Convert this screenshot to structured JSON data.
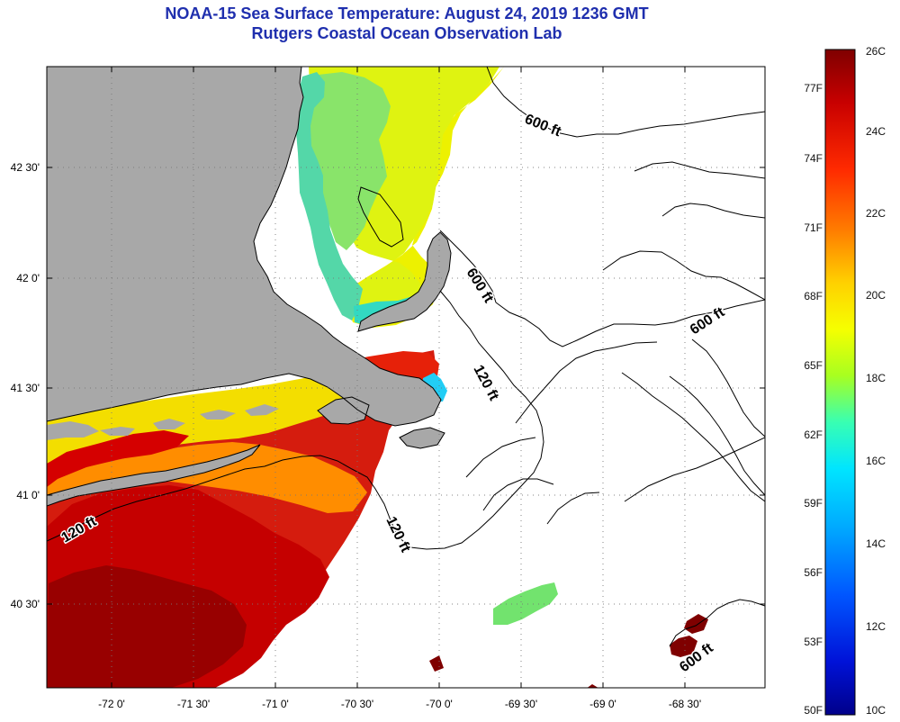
{
  "title": {
    "line1": "NOAA-15 Sea Surface Temperature:  August 24, 2019 1236 GMT",
    "line2": "Rutgers Coastal Ocean Observation Lab"
  },
  "map": {
    "longitude_ticks": [
      "-72 0'",
      "-71 30'",
      "-71 0'",
      "-70 30'",
      "-70 0'",
      "-69 30'",
      "-69 0'",
      "-68 30'"
    ],
    "latitude_ticks": [
      "42 30'",
      "42 0'",
      "41 30'",
      "41 0'",
      "40 30'"
    ],
    "contour_labels": [
      "600 ft",
      "600 ft",
      "600 ft",
      "600 ft",
      "120 ft",
      "120 ft",
      "120 ft"
    ],
    "colors": {
      "land": "#a8a8a8",
      "ocean_no_data": "#ffffff",
      "coast": "#000000"
    }
  },
  "colorbar": {
    "fahrenheit_labels": [
      "77F",
      "74F",
      "71F",
      "68F",
      "65F",
      "62F",
      "59F",
      "56F",
      "53F",
      "50F"
    ],
    "celsius_labels": [
      "26C",
      "24C",
      "22C",
      "20C",
      "18C",
      "16C",
      "14C",
      "12C",
      "10C"
    ],
    "range_c": [
      10,
      26
    ],
    "gradient_colors": [
      "#7f0000",
      "#c80000",
      "#ff2a00",
      "#ff7b00",
      "#ffd000",
      "#f6ff00",
      "#a8ff20",
      "#38ffb2",
      "#00e5ff",
      "#00a8ff",
      "#0056ff",
      "#0012d8",
      "#00008a"
    ]
  }
}
